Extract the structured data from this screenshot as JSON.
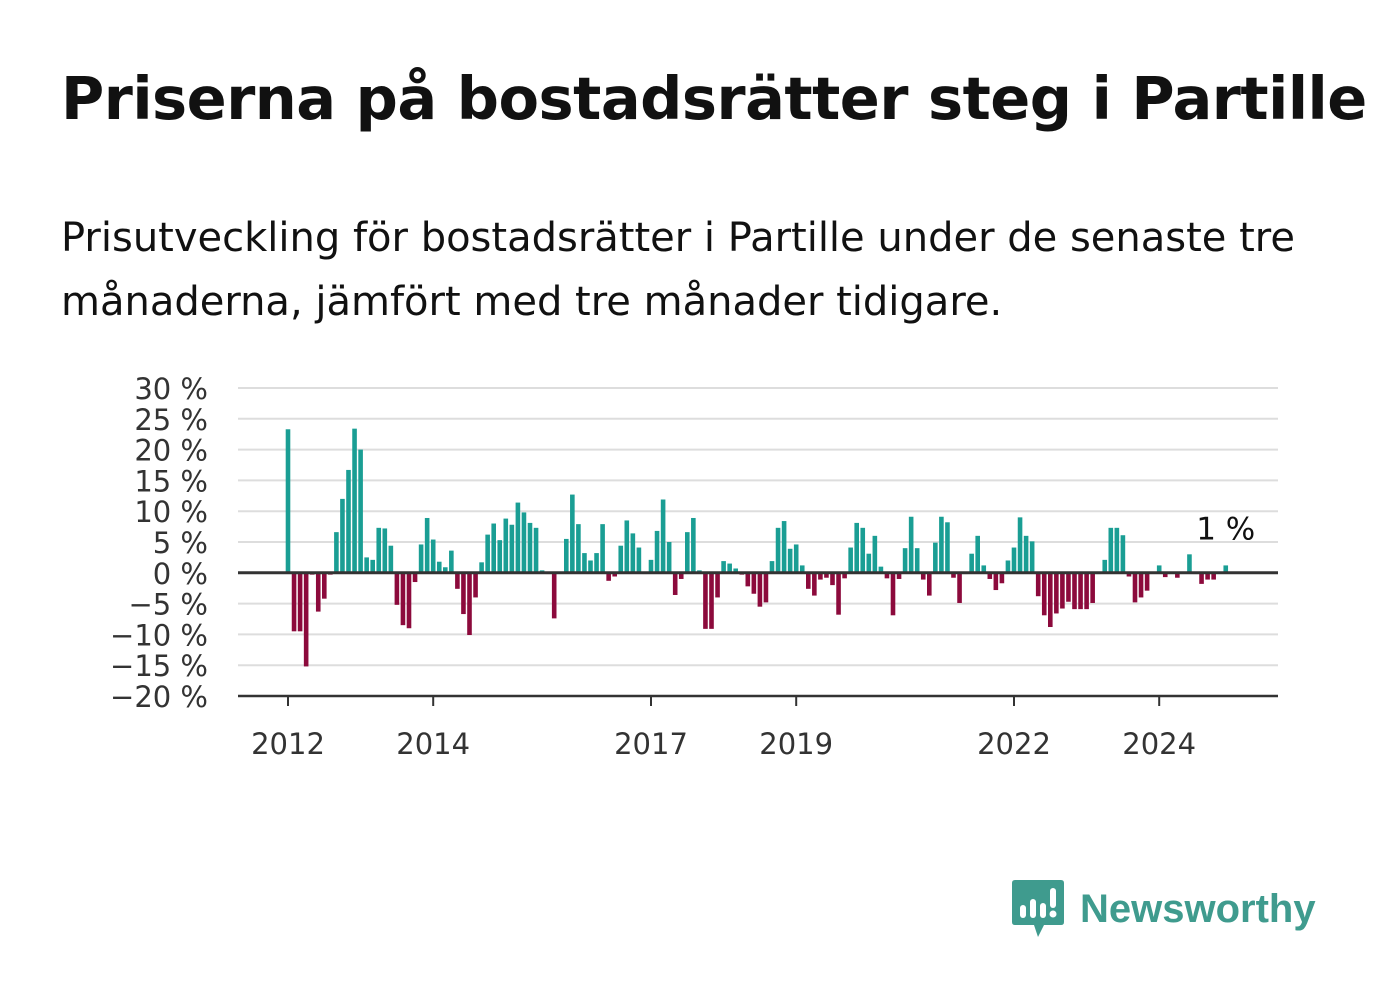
{
  "title": "Priserna på bostadsrätter steg i Partille",
  "subtitle": "Prisutveckling för bostadsrätter i Partille under de senaste tre månaderna, jämfört med tre månader tidigare.",
  "brand": {
    "name": "Newsworthy",
    "color": "#3f9b8e",
    "icon": "chart-speech-bubble-icon"
  },
  "colors": {
    "positive": "#1a9e94",
    "negative": "#8c0a3c",
    "grid": "#dddddd",
    "axis": "#333333"
  },
  "chart_data": {
    "type": "bar",
    "unit": "%",
    "ylim": [
      -20,
      30
    ],
    "yticks": [
      30,
      25,
      20,
      15,
      10,
      5,
      0,
      -5,
      -10,
      -15,
      -20
    ],
    "ytick_labels": [
      "30 %",
      "25 %",
      "20 %",
      "15 %",
      "10 %",
      "5 %",
      "0 %",
      "−5 %",
      "−10 %",
      "−15 %",
      "−20 %"
    ],
    "xticks": [
      "2012",
      "2014",
      "2017",
      "2019",
      "2022",
      "2024"
    ],
    "grid": true,
    "x_start": "2012-01",
    "annotation": {
      "label": "1 %",
      "month": "2024-12"
    },
    "values": [
      23.3,
      -9.5,
      -9.5,
      -15.2,
      -0.3,
      -6.3,
      -4.2,
      -0.3,
      6.6,
      12.0,
      16.7,
      23.4,
      20.0,
      2.5,
      2.1,
      7.3,
      7.2,
      4.4,
      -5.2,
      -8.5,
      -9.0,
      -1.5,
      4.6,
      8.9,
      5.4,
      1.8,
      0.9,
      3.6,
      -2.6,
      -6.7,
      -10.1,
      -4.0,
      1.7,
      6.2,
      8.0,
      5.3,
      8.8,
      7.8,
      11.4,
      9.8,
      8.1,
      7.3,
      0.4,
      -0.2,
      -7.4,
      -0.1,
      5.5,
      12.7,
      7.9,
      3.2,
      2.0,
      3.2,
      7.9,
      -1.3,
      -0.6,
      4.4,
      8.5,
      6.4,
      4.1,
      -0.2,
      2.1,
      6.8,
      11.9,
      5.0,
      -3.6,
      -1.0,
      6.6,
      8.9,
      0.4,
      -9.1,
      -9.1,
      -4.0,
      1.9,
      1.5,
      0.7,
      -0.3,
      -2.2,
      -3.4,
      -5.5,
      -4.8,
      1.9,
      7.3,
      8.4,
      3.9,
      4.6,
      1.2,
      -2.6,
      -3.7,
      -1.1,
      -0.8,
      -2.0,
      -6.8,
      -0.9,
      4.1,
      8.1,
      7.3,
      3.1,
      6.0,
      1.0,
      -0.9,
      -6.9,
      -1.0,
      4.0,
      9.1,
      4.0,
      -1.1,
      -3.7,
      4.9,
      9.1,
      8.2,
      -0.8,
      -4.9,
      -0.2,
      3.1,
      6.0,
      1.2,
      -1.0,
      -2.8,
      -1.7,
      2.0,
      4.1,
      9.0,
      6.0,
      5.1,
      -3.8,
      -6.9,
      -8.8,
      -6.6,
      -5.8,
      -4.7,
      -5.9,
      -5.9,
      -5.9,
      -4.9,
      -0.2,
      2.1,
      7.3,
      7.3,
      6.1,
      -0.6,
      -4.8,
      -4.0,
      -2.9,
      -0.1,
      1.2,
      -0.7,
      -0.1,
      -0.8,
      -0.1,
      3.0,
      -0.2,
      -1.8,
      -1.1,
      -1.1,
      -0.1,
      1.2
    ]
  }
}
